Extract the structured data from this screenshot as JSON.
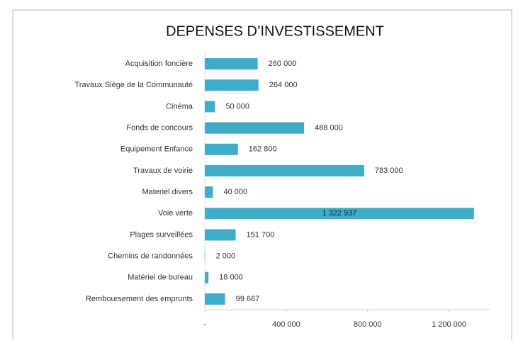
{
  "chart_data": {
    "type": "hbar",
    "title": "DEPENSES D’INVESTISSEMENT",
    "categories": [
      "Acquisition foncière",
      "Travaux Siège de la Communauté",
      "Cinéma",
      "Fonds de concours",
      "Equipement Enfance",
      "Travaux de voirie",
      "Materiel divers",
      "Voie verte",
      "Plages surveillées",
      "Chemins de randonnées",
      "Matériel de bureau",
      "Remboursement des emprunts"
    ],
    "values": [
      260000,
      264000,
      50000,
      488000,
      162800,
      783000,
      40000,
      1322937,
      151700,
      2000,
      18000,
      99667
    ],
    "value_labels": [
      "260 000",
      "264 000",
      "50 000",
      "488 000",
      "162 800",
      "783 000",
      "40 000",
      "1 322 937",
      "151 700",
      "2 000",
      "18 000",
      "99 667"
    ],
    "color": "#41acc8",
    "xlim": [
      0,
      1400000
    ],
    "xticks": [
      {
        "value": 0,
        "label": "-"
      },
      {
        "value": 400000,
        "label": "400 000"
      },
      {
        "value": 800000,
        "label": "800 000"
      },
      {
        "value": 1200000,
        "label": "1 200 000"
      }
    ]
  }
}
